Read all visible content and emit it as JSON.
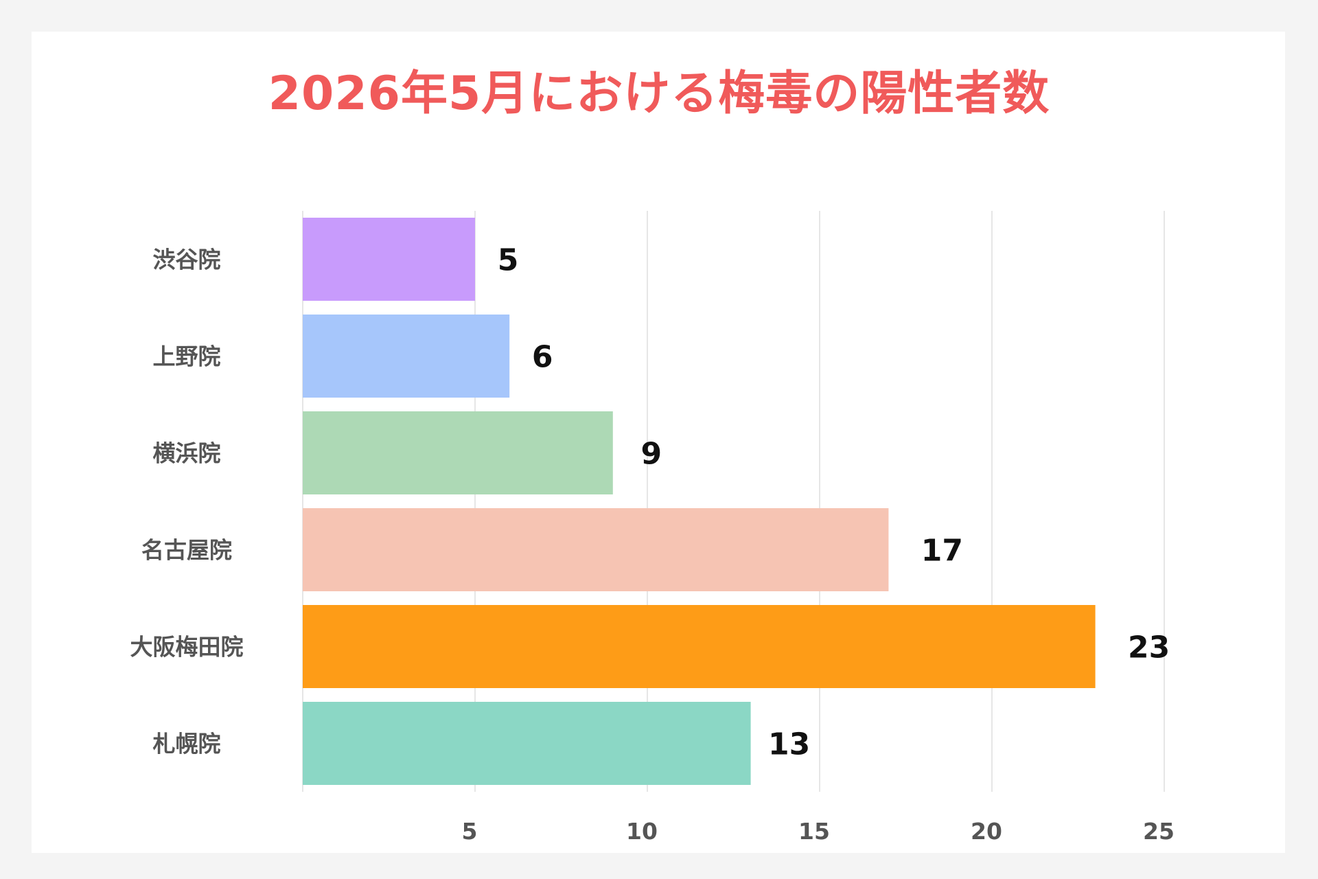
{
  "chart_data": {
    "type": "bar",
    "orientation": "horizontal",
    "title": "2026年5月における梅毒の陽性者数",
    "xlabel": "",
    "ylabel": "",
    "categories": [
      "渋谷院",
      "上野院",
      "横浜院",
      "名古屋院",
      "大阪梅田院",
      "札幌院"
    ],
    "values": [
      5,
      6,
      9,
      17,
      23,
      13
    ],
    "data_labels": [
      "5",
      "6",
      "9",
      "17",
      "23",
      "13"
    ],
    "colors": [
      "#c89bfc",
      "#a6c6fb",
      "#add9b5",
      "#f6c4b3",
      "#fe9c17",
      "#8bd7c5"
    ],
    "xlim": [
      0,
      25
    ],
    "x_ticks": [
      5,
      10,
      15,
      20,
      25
    ],
    "x_tick_labels": [
      "5",
      "10",
      "15",
      "20",
      "25"
    ],
    "grid": true,
    "legend": "none"
  },
  "theme": {
    "title_color": "#f05a5a",
    "grid_color": "#dddddd",
    "label_color": "#555555",
    "value_color": "#111111",
    "background": "#f4f4f4",
    "card": "#ffffff"
  }
}
